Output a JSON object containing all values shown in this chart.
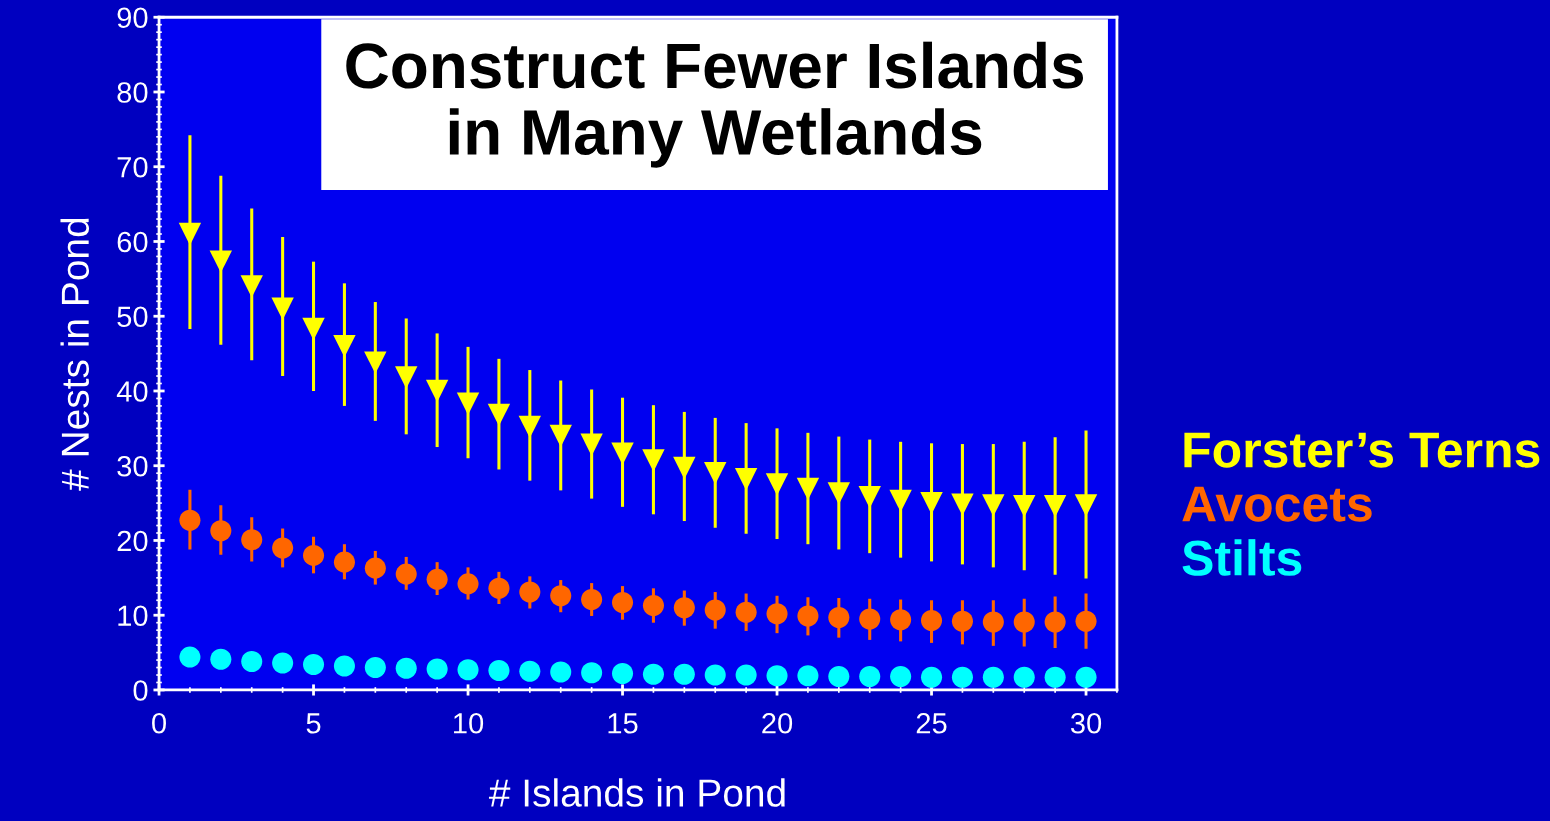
{
  "chart_data": {
    "type": "scatter",
    "title": "Construct Fewer Islands\nin Many Wetlands",
    "xlabel": "# Islands in Pond",
    "ylabel": "# Nests in Pond",
    "x": [
      1,
      2,
      3,
      4,
      5,
      6,
      7,
      8,
      9,
      10,
      11,
      12,
      13,
      14,
      15,
      16,
      17,
      18,
      19,
      20,
      21,
      22,
      23,
      24,
      25,
      26,
      27,
      28,
      29,
      30
    ],
    "series": [
      {
        "name": "Forster’s Terns",
        "color": "#ffff00",
        "marker": "triangle",
        "values": [
          61,
          57.3,
          54,
          51,
          48.3,
          46,
          43.8,
          41.8,
          40,
          38.3,
          36.8,
          35.2,
          34,
          32.8,
          31.6,
          30.7,
          29.7,
          29,
          28.2,
          27.5,
          26.9,
          26.3,
          25.8,
          25.3,
          25,
          24.8,
          24.7,
          24.6,
          24.6,
          24.7
        ],
        "errors": [
          [
            48.3,
            74.2
          ],
          [
            46.2,
            68.8
          ],
          [
            44.1,
            64.4
          ],
          [
            42,
            60.6
          ],
          [
            40,
            57.3
          ],
          [
            38,
            54.4
          ],
          [
            36,
            51.9
          ],
          [
            34.2,
            49.7
          ],
          [
            32.5,
            47.7
          ],
          [
            31,
            45.9
          ],
          [
            29.5,
            44.3
          ],
          [
            28,
            42.8
          ],
          [
            26.7,
            41.4
          ],
          [
            25.6,
            40.2
          ],
          [
            24.5,
            39.1
          ],
          [
            23.5,
            38.1
          ],
          [
            22.6,
            37.2
          ],
          [
            21.7,
            36.4
          ],
          [
            20.9,
            35.7
          ],
          [
            20.2,
            35
          ],
          [
            19.5,
            34.4
          ],
          [
            18.8,
            33.9
          ],
          [
            18.3,
            33.5
          ],
          [
            17.7,
            33.2
          ],
          [
            17.2,
            33
          ],
          [
            16.8,
            32.9
          ],
          [
            16.4,
            32.9
          ],
          [
            16,
            33.2
          ],
          [
            15.4,
            33.8
          ],
          [
            14.9,
            34.7
          ]
        ]
      },
      {
        "name": "Avocets",
        "color": "#ff6600",
        "marker": "circle",
        "values": [
          22.7,
          21.3,
          20.1,
          19,
          18,
          17.1,
          16.3,
          15.5,
          14.8,
          14.2,
          13.6,
          13.1,
          12.6,
          12.1,
          11.7,
          11.3,
          11,
          10.7,
          10.4,
          10.2,
          9.9,
          9.7,
          9.5,
          9.4,
          9.3,
          9.2,
          9.1,
          9.1,
          9.1,
          9.2
        ],
        "errors": [
          [
            18.8,
            26.8
          ],
          [
            18.1,
            24.7
          ],
          [
            17.2,
            23.1
          ],
          [
            16.4,
            21.6
          ],
          [
            15.6,
            20.5
          ],
          [
            14.8,
            19.5
          ],
          [
            14.1,
            18.6
          ],
          [
            13.4,
            17.8
          ],
          [
            12.7,
            17.1
          ],
          [
            12.1,
            16.4
          ],
          [
            11.5,
            15.8
          ],
          [
            10.9,
            15.2
          ],
          [
            10.4,
            14.7
          ],
          [
            9.9,
            14.3
          ],
          [
            9.4,
            13.9
          ],
          [
            9,
            13.6
          ],
          [
            8.6,
            13.3
          ],
          [
            8.2,
            13.1
          ],
          [
            7.9,
            12.9
          ],
          [
            7.6,
            12.6
          ],
          [
            7.3,
            12.4
          ],
          [
            7,
            12.3
          ],
          [
            6.7,
            12.2
          ],
          [
            6.5,
            12.1
          ],
          [
            6.3,
            12
          ],
          [
            6.1,
            12
          ],
          [
            5.9,
            12
          ],
          [
            5.8,
            12.2
          ],
          [
            5.6,
            12.5
          ],
          [
            5.5,
            12.9
          ]
        ]
      },
      {
        "name": "Stilts",
        "color": "#00ffff",
        "marker": "circle",
        "values": [
          4.4,
          4.1,
          3.8,
          3.6,
          3.4,
          3.2,
          3.0,
          2.9,
          2.8,
          2.7,
          2.6,
          2.5,
          2.4,
          2.3,
          2.2,
          2.1,
          2.1,
          2.0,
          2.0,
          1.9,
          1.9,
          1.8,
          1.8,
          1.8,
          1.7,
          1.7,
          1.7,
          1.7,
          1.7,
          1.7
        ]
      }
    ],
    "xlim": [
      0,
      31
    ],
    "xticks": [
      0,
      5,
      10,
      15,
      20,
      25,
      30
    ],
    "ylim": [
      0,
      90
    ],
    "yticks": [
      0,
      10,
      20,
      30,
      40,
      50,
      60,
      70,
      80,
      90
    ],
    "grid": false,
    "legend": "right"
  }
}
